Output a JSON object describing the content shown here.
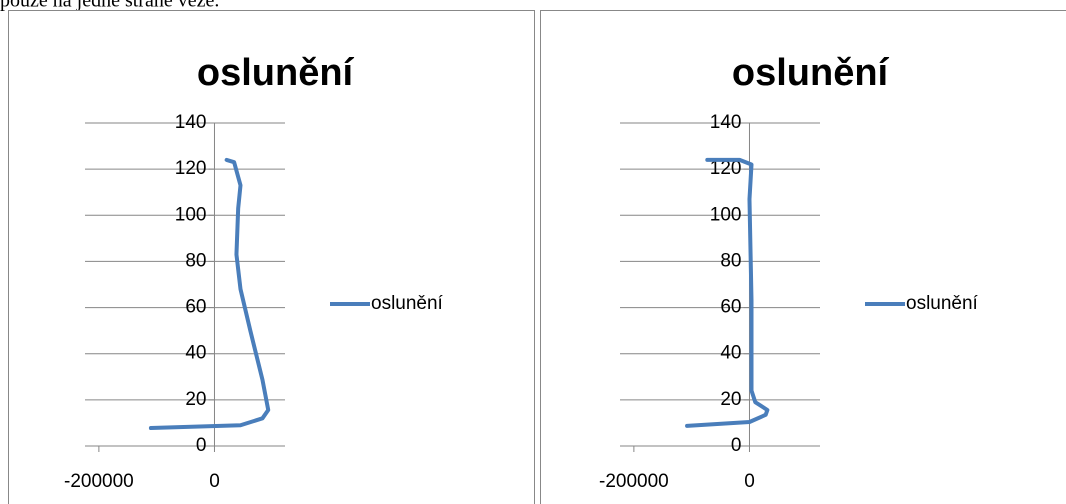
{
  "caption": "pouze na jedné straně věže.",
  "chart_data": [
    {
      "type": "line",
      "title": "oslunění",
      "x": [
        -110000,
        45000,
        83000,
        93000,
        83000,
        62000,
        45000,
        38000,
        41000,
        45000,
        34000,
        21000
      ],
      "series": [
        {
          "name": "oslunění",
          "color": "#4a7ebb",
          "values": [
            7.8,
            9,
            12,
            15.6,
            28.7,
            50,
            68,
            83,
            103,
            113,
            123,
            124
          ]
        }
      ],
      "xlim": [
        -224000,
        122000
      ],
      "xticks": [
        -200000,
        0
      ],
      "ylim": [
        0,
        140
      ],
      "yticks": [
        0,
        20,
        40,
        60,
        80,
        100,
        120,
        140
      ],
      "grid": true,
      "legend": "right"
    },
    {
      "type": "line",
      "title": "oslunění",
      "x": [
        -108000,
        0,
        28000,
        31000,
        10000,
        3500,
        3500,
        0,
        3500,
        -17000,
        -73000
      ],
      "series": [
        {
          "name": "oslunění",
          "color": "#4a7ebb",
          "values": [
            8.7,
            10.4,
            13.5,
            15.6,
            19,
            24,
            63,
            107,
            122,
            124,
            124
          ]
        }
      ],
      "xlim": [
        -224000,
        122000
      ],
      "xticks": [
        -200000,
        0
      ],
      "ylim": [
        0,
        140
      ],
      "yticks": [
        0,
        20,
        40,
        60,
        80,
        100,
        120,
        140
      ],
      "grid": true,
      "legend": "right"
    }
  ]
}
